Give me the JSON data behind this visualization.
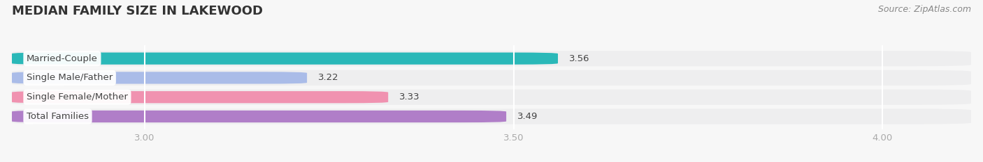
{
  "title": "MEDIAN FAMILY SIZE IN LAKEWOOD",
  "source": "Source: ZipAtlas.com",
  "categories": [
    "Married-Couple",
    "Single Male/Father",
    "Single Female/Mother",
    "Total Families"
  ],
  "values": [
    3.56,
    3.22,
    3.33,
    3.49
  ],
  "bar_colors": [
    "#2ab8b8",
    "#aabce8",
    "#f092b0",
    "#b07ec8"
  ],
  "bar_bg_color": "#e8e8ec",
  "row_bg_color": "#eeeeef",
  "xlim_left": 2.82,
  "xlim_right": 4.12,
  "xticks": [
    3.0,
    3.5,
    4.0
  ],
  "xtick_labels": [
    "3.00",
    "3.50",
    "4.00"
  ],
  "title_fontsize": 13,
  "label_fontsize": 9.5,
  "value_fontsize": 9.5,
  "source_fontsize": 9,
  "bar_height": 0.62,
  "background_color": "#f7f7f7",
  "grid_color": "#ffffff",
  "text_color": "#555555",
  "tick_color": "#aaaaaa"
}
